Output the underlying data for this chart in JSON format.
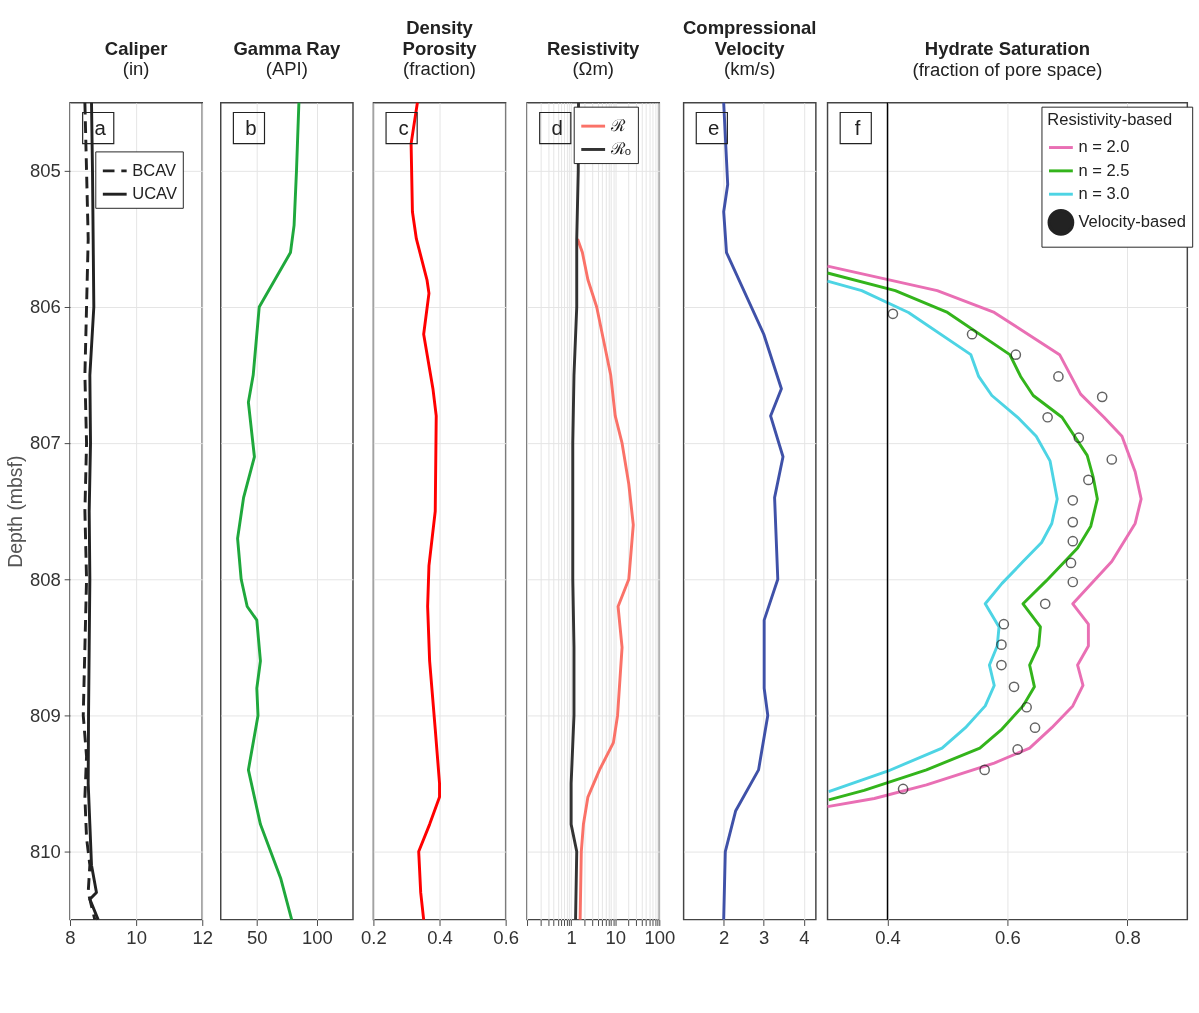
{
  "chart_data": [
    {
      "type": "line",
      "title": "Caliper",
      "subtitle": "(in)",
      "ylabel": "Depth (mbsf)",
      "annotations": [
        "a"
      ],
      "xlim": [
        8,
        12
      ],
      "xticks": [
        8,
        10,
        12
      ],
      "ylim": [
        810.5,
        804.5
      ],
      "yticks": [
        805,
        806,
        807,
        808,
        809,
        810
      ],
      "grid": true,
      "legend": "top",
      "series": [
        {
          "name": "BCAV",
          "color": "#222222",
          "line_style": "dashed",
          "x": [
            8.45,
            8.5,
            8.55,
            8.5,
            8.45,
            8.5,
            8.45,
            8.5,
            8.45,
            8.4,
            8.5,
            8.45,
            8.5,
            8.6,
            8.55,
            8.75
          ],
          "values": [
            804.5,
            805,
            805.5,
            806,
            806.5,
            807,
            807.5,
            808,
            808.5,
            809,
            809.3,
            809.6,
            809.9,
            810.1,
            810.3,
            810.5
          ]
        },
        {
          "name": "UCAV",
          "color": "#222222",
          "line_style": "solid",
          "x": [
            8.65,
            8.68,
            8.7,
            8.72,
            8.6,
            8.62,
            8.58,
            8.6,
            8.58,
            8.56,
            8.55,
            8.6,
            8.65,
            8.8,
            8.6,
            8.85
          ],
          "values": [
            804.5,
            805,
            805.5,
            806,
            806.5,
            807,
            807.5,
            808,
            808.5,
            809,
            809.5,
            809.8,
            810.1,
            810.3,
            810.35,
            810.5
          ]
        }
      ]
    },
    {
      "type": "line",
      "title": "Gamma Ray",
      "subtitle": "(API)",
      "annotations": [
        "b"
      ],
      "xlim": [
        20,
        130
      ],
      "xticks": [
        50,
        100
      ],
      "ylim": [
        810.5,
        804.5
      ],
      "yticks": [
        805,
        806,
        807,
        808,
        809,
        810
      ],
      "grid": true,
      "tick_labels": "x",
      "series": [
        {
          "color": "#1fa83c",
          "x": [
            85,
            83,
            81,
            78,
            52,
            47,
            43,
            48,
            39,
            34,
            37,
            42,
            50,
            53,
            50,
            51,
            43,
            53,
            70,
            79
          ],
          "values": [
            804.5,
            805,
            805.4,
            805.6,
            806,
            806.5,
            806.7,
            807.1,
            807.4,
            807.7,
            808,
            808.2,
            808.3,
            808.6,
            808.8,
            809,
            809.4,
            809.8,
            810.2,
            810.5
          ]
        }
      ]
    },
    {
      "type": "line",
      "title": "Density\nPorosity",
      "subtitle": "(fraction)",
      "annotations": [
        "c"
      ],
      "xlim": [
        0.2,
        0.6
      ],
      "xticks": [
        0.2,
        0.4,
        0.6
      ],
      "ylim": [
        810.5,
        804.5
      ],
      "yticks": [
        805,
        806,
        807,
        808,
        809,
        810
      ],
      "grid": true,
      "tick_labels": "x",
      "series": [
        {
          "color": "#ff0000",
          "x": [
            0.333,
            0.314,
            0.318,
            0.33,
            0.362,
            0.368,
            0.352,
            0.38,
            0.39,
            0.387,
            0.368,
            0.364,
            0.37,
            0.387,
            0.4,
            0.4,
            0.37,
            0.337,
            0.343,
            0.352
          ],
          "values": [
            804.5,
            804.8,
            805.3,
            805.5,
            805.8,
            805.9,
            806.2,
            806.6,
            806.8,
            807.5,
            807.9,
            808.2,
            808.6,
            809.1,
            809.5,
            809.6,
            809.8,
            810.0,
            810.3,
            810.5
          ]
        }
      ]
    },
    {
      "type": "line",
      "title": "Resistivity",
      "subtitle": "(Ωm)",
      "annotations": [
        "d"
      ],
      "log": "x",
      "xlim": [
        0.1,
        100
      ],
      "xticks": [
        {
          "value": 0.1,
          "label": null
        },
        {
          "value": 0.2,
          "label": null
        },
        {
          "value": 0.3,
          "label": null
        },
        {
          "value": 0.4,
          "label": null
        },
        {
          "value": 0.5,
          "label": null
        },
        {
          "value": 0.6,
          "label": null
        },
        {
          "value": 0.7,
          "label": null
        },
        {
          "value": 0.8,
          "label": null
        },
        {
          "value": 0.9,
          "label": null
        },
        1,
        {
          "value": 2,
          "label": null
        },
        {
          "value": 3,
          "label": null
        },
        {
          "value": 4,
          "label": null
        },
        {
          "value": 5,
          "label": null
        },
        {
          "value": 6,
          "label": null
        },
        {
          "value": 7,
          "label": null
        },
        {
          "value": 8,
          "label": null
        },
        {
          "value": 9,
          "label": null
        },
        10,
        {
          "value": 20,
          "label": null
        },
        {
          "value": 30,
          "label": null
        },
        {
          "value": 40,
          "label": null
        },
        {
          "value": 50,
          "label": null
        },
        {
          "value": 60,
          "label": null
        },
        {
          "value": 70,
          "label": null
        },
        {
          "value": 80,
          "label": null
        },
        {
          "value": 90,
          "label": null
        },
        100
      ],
      "ylim": [
        810.5,
        804.5
      ],
      "yticks": [
        805,
        806,
        807,
        808,
        809,
        810
      ],
      "grid": true,
      "tick_labels": "x",
      "legend": "top right",
      "series": [
        {
          "name": "ℛ",
          "color": "#fa7268",
          "x": [
            1.4,
            1.8,
            2.4,
            3.8,
            7.9,
            10,
            14.3,
            20.3,
            25.7,
            20.3,
            11.6,
            14.3,
            11.3,
            9.1,
            4.4,
            2.4,
            1.9,
            1.7,
            1.6
          ],
          "values": [
            805.5,
            805.6,
            805.8,
            806.0,
            806.5,
            806.8,
            807.0,
            807.3,
            807.6,
            808.0,
            808.2,
            808.5,
            809.0,
            809.2,
            809.4,
            809.6,
            809.8,
            810.0,
            810.5
          ]
        },
        {
          "name": "ℛₒ",
          "color": "#333333",
          "x": [
            1.47,
            1.45,
            1.34,
            1.34,
            1.16,
            1.09,
            1.09,
            1.16,
            1.16,
            1.0,
            1.0,
            1.34,
            1.26
          ],
          "values": [
            804.5,
            805,
            805.5,
            806,
            806.5,
            807,
            808,
            808.5,
            809,
            809.5,
            809.8,
            810,
            810.5
          ]
        }
      ]
    },
    {
      "type": "line",
      "title": "Compressional\nVelocity",
      "subtitle": "(km/s)",
      "annotations": [
        "e"
      ],
      "xlim": [
        1,
        4.3
      ],
      "xticks": [
        2,
        3,
        4
      ],
      "ylim": [
        810.5,
        804.5
      ],
      "yticks": [
        805,
        806,
        807,
        808,
        809,
        810
      ],
      "grid": true,
      "tick_labels": "x",
      "series": [
        {
          "color": "#3f51a8",
          "x": [
            2.0,
            2.1,
            2.0,
            2.07,
            3.0,
            3.44,
            3.17,
            3.48,
            3.27,
            3.35,
            3.01,
            3.01,
            3.1,
            2.87,
            2.3,
            2.04,
            2.0
          ],
          "values": [
            804.5,
            805.1,
            805.3,
            805.6,
            806.2,
            806.6,
            806.8,
            807.1,
            807.4,
            808.0,
            808.3,
            808.8,
            809.0,
            809.4,
            809.7,
            810.0,
            810.5
          ]
        }
      ]
    },
    {
      "type": "line",
      "title": "Hydrate Saturation",
      "subtitle": "(fraction of pore space)",
      "annotations": [
        "f"
      ],
      "xlim": [
        0.3,
        0.9
      ],
      "xticks": [
        0.4,
        0.6,
        0.8
      ],
      "ylim": [
        810.5,
        804.5
      ],
      "yticks": [
        805,
        806,
        807,
        808,
        809,
        810
      ],
      "grid": true,
      "tick_labels": "x",
      "legend": "top right",
      "legend_title": "Resistivity-based",
      "ref_lines": [
        {
          "axis": "x",
          "value": 0.4,
          "color": "#000000"
        }
      ],
      "series": [
        {
          "name": "n = 2.0",
          "color": "#e96fb4",
          "x": [
            0.3,
            0.483,
            0.578,
            0.687,
            0.722,
            0.761,
            0.791,
            0.813,
            0.823,
            0.813,
            0.774,
            0.709,
            0.735,
            0.735,
            0.717,
            0.726,
            0.709,
            0.674,
            0.637,
            0.578,
            0.465,
            0.378,
            0.3
          ],
          "values": [
            805.7,
            805.88,
            806.04,
            806.35,
            806.64,
            806.81,
            806.95,
            807.21,
            807.41,
            807.59,
            807.87,
            808.18,
            808.33,
            808.49,
            808.63,
            808.78,
            808.93,
            809.09,
            809.24,
            809.35,
            809.51,
            809.61,
            809.67
          ]
        },
        {
          "name": "n = 2.5",
          "color": "#33b41b",
          "x": [
            0.3,
            0.413,
            0.5,
            0.604,
            0.622,
            0.643,
            0.691,
            0.733,
            0.743,
            0.75,
            0.739,
            0.717,
            0.665,
            0.626,
            0.655,
            0.652,
            0.637,
            0.645,
            0.626,
            0.591,
            0.554,
            0.465,
            0.361,
            0.302
          ],
          "values": [
            805.75,
            805.88,
            806.04,
            806.35,
            806.51,
            806.65,
            806.81,
            807.09,
            807.25,
            807.41,
            807.61,
            807.77,
            808.01,
            808.18,
            808.35,
            808.49,
            808.63,
            808.79,
            808.93,
            809.1,
            809.24,
            809.4,
            809.55,
            809.62
          ]
        },
        {
          "name": "n = 3.0",
          "color": "#4dd4e4",
          "x": [
            0.3,
            0.357,
            0.435,
            0.539,
            0.552,
            0.574,
            0.617,
            0.648,
            0.671,
            0.683,
            0.674,
            0.657,
            0.626,
            0.591,
            0.563,
            0.586,
            0.583,
            0.57,
            0.578,
            0.563,
            0.53,
            0.491,
            0.4,
            0.302
          ],
          "values": [
            805.81,
            805.88,
            806.04,
            806.35,
            806.51,
            806.65,
            806.81,
            806.95,
            807.13,
            807.41,
            807.59,
            807.73,
            807.87,
            808.03,
            808.18,
            808.35,
            808.49,
            808.63,
            808.78,
            808.93,
            809.09,
            809.24,
            809.41,
            809.56
          ]
        },
        {
          "name": "Velocity-based",
          "type": "scatter",
          "marker": "circle",
          "color": "#222222",
          "x": [
            0.409,
            0.541,
            0.614,
            0.685,
            0.758,
            0.667,
            0.719,
            0.774,
            0.735,
            0.709,
            0.709,
            0.709,
            0.706,
            0.709,
            0.663,
            0.594,
            0.59,
            0.59,
            0.611,
            0.632,
            0.646,
            0.617,
            0.562,
            0.426
          ],
          "values": [
            806.05,
            806.2,
            806.35,
            806.51,
            806.66,
            806.81,
            806.96,
            807.12,
            807.27,
            807.42,
            807.58,
            807.72,
            807.88,
            808.02,
            808.18,
            808.33,
            808.48,
            808.63,
            808.79,
            808.94,
            809.09,
            809.25,
            809.4,
            809.54
          ]
        }
      ]
    }
  ]
}
